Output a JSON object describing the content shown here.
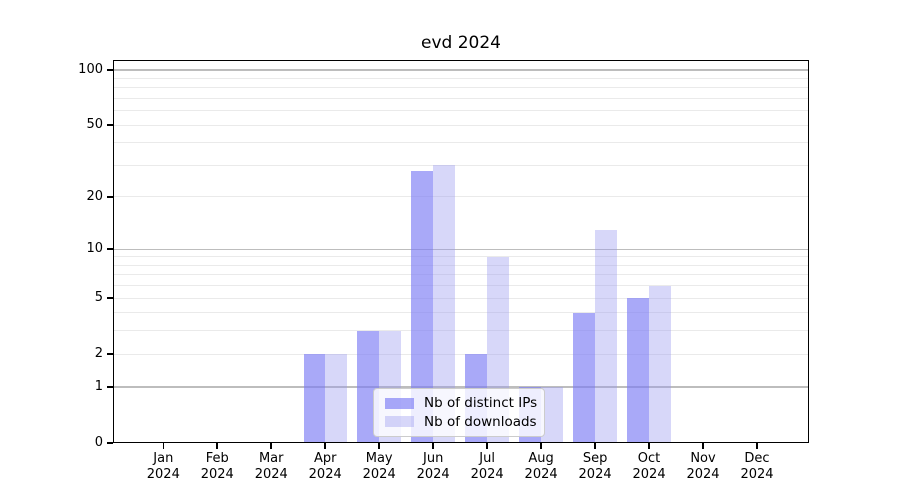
{
  "chart_data": {
    "type": "bar",
    "title": "evd 2024",
    "x_months": [
      "Jan",
      "Feb",
      "Mar",
      "Apr",
      "May",
      "Jun",
      "Jul",
      "Aug",
      "Sep",
      "Oct",
      "Nov",
      "Dec"
    ],
    "x_year_label": "2024",
    "series": [
      {
        "name": "Nb of distinct IPs",
        "color": "rgba(123,123,244,0.65)",
        "solid_hex": "#a9a9f5",
        "values": [
          0,
          0,
          0,
          2,
          3,
          28,
          2,
          1,
          4,
          5,
          0,
          0
        ]
      },
      {
        "name": "Nb of downloads",
        "color": "rgba(150,150,240,0.38)",
        "solid_hex": "#d8d8f7",
        "values": [
          0,
          0,
          0,
          2,
          3,
          30,
          9,
          1,
          13,
          6,
          0,
          0
        ]
      }
    ],
    "y_scale": "log1p",
    "y_ticks": [
      0,
      1,
      2,
      5,
      10,
      20,
      50,
      100
    ],
    "y_major_gridlines": [
      1,
      10,
      100
    ],
    "y_minor_gridlines": [
      2,
      3,
      4,
      5,
      6,
      7,
      8,
      9,
      20,
      30,
      40,
      50,
      60,
      70,
      80,
      90
    ],
    "ylim": [
      0,
      113
    ],
    "grid": true,
    "legend_position": "inside-bottom-center",
    "colors": {
      "major_grid": "#bdbdbd",
      "minor_grid": "#eaeaea",
      "axis": "#000000",
      "background": "#ffffff"
    }
  }
}
